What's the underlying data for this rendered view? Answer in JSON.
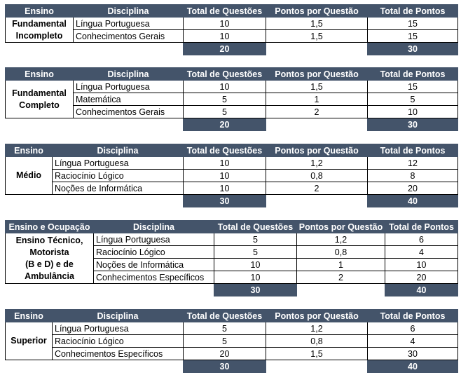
{
  "headers": {
    "ensino": "Ensino",
    "ensino_ocupacao": "Ensino e Ocupação",
    "disciplina": "Disciplina",
    "total_questoes": "Total de Questões",
    "pontos_questao": "Pontos por Questão",
    "total_pontos": "Total de Pontos"
  },
  "tables": [
    {
      "level_lines": [
        "Fundamental",
        "Incompleto"
      ],
      "rows": [
        {
          "disciplina": "Língua Portuguesa",
          "questoes": "10",
          "pontos": "1,5",
          "total": "15"
        },
        {
          "disciplina": "Conhecimentos Gerais",
          "questoes": "10",
          "pontos": "1,5",
          "total": "15"
        }
      ],
      "sum_questoes": "20",
      "sum_pontos": "30"
    },
    {
      "level_lines": [
        "Fundamental",
        "Completo"
      ],
      "rows": [
        {
          "disciplina": "Língua Portuguesa",
          "questoes": "10",
          "pontos": "1,5",
          "total": "15"
        },
        {
          "disciplina": "Matemática",
          "questoes": "5",
          "pontos": "1",
          "total": "5"
        },
        {
          "disciplina": "Conhecimentos Gerais",
          "questoes": "5",
          "pontos": "2",
          "total": "10"
        }
      ],
      "sum_questoes": "20",
      "sum_pontos": "30"
    },
    {
      "level_lines": [
        "Médio"
      ],
      "rows": [
        {
          "disciplina": "Língua Portuguesa",
          "questoes": "10",
          "pontos": "1,2",
          "total": "12"
        },
        {
          "disciplina": "Raciocínio Lógico",
          "questoes": "10",
          "pontos": "0,8",
          "total": "8"
        },
        {
          "disciplina": "Noções de Informática",
          "questoes": "10",
          "pontos": "2",
          "total": "20"
        }
      ],
      "sum_questoes": "30",
      "sum_pontos": "40"
    },
    {
      "level_lines": [
        "Ensino Técnico,",
        "Motorista",
        "(B e D) e de",
        "Ambulância"
      ],
      "rows": [
        {
          "disciplina": "Língua Portuguesa",
          "questoes": "5",
          "pontos": "1,2",
          "total": "6"
        },
        {
          "disciplina": "Raciocínio Lógico",
          "questoes": "5",
          "pontos": "0,8",
          "total": "4"
        },
        {
          "disciplina": "Noções de Informática",
          "questoes": "10",
          "pontos": "1",
          "total": "10"
        },
        {
          "disciplina": "Conhecimentos Específicos",
          "questoes": "10",
          "pontos": "2",
          "total": "20"
        }
      ],
      "sum_questoes": "30",
      "sum_pontos": "40"
    },
    {
      "level_lines": [
        "Superior"
      ],
      "rows": [
        {
          "disciplina": "Língua Portuguesa",
          "questoes": "5",
          "pontos": "1,2",
          "total": "6"
        },
        {
          "disciplina": "Raciocínio Lógico",
          "questoes": "5",
          "pontos": "0,8",
          "total": "4"
        },
        {
          "disciplina": "Conhecimentos Específicos",
          "questoes": "20",
          "pontos": "1,5",
          "total": "30"
        }
      ],
      "sum_questoes": "30",
      "sum_pontos": "40"
    }
  ],
  "colors": {
    "header_bg": "#44546a",
    "header_text": "#ffffff"
  }
}
